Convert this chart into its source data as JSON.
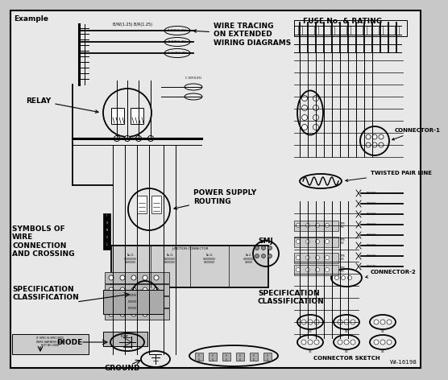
{
  "bg_color": "#c8c8c8",
  "inner_bg": "#e8e8e8",
  "labels": {
    "example": "Example",
    "relay": "RELAY",
    "wire_tracing": "WIRE TRACING\nON EXTENDED\nWIRING DIAGRAMS",
    "fuse": "FUSE No. & RATING",
    "connector1": "CONNECTOR-1",
    "twisted": "TWISTED PAIR LINE",
    "power_supply": "POWER SUPPLY\nROUTING",
    "smj": "SMJ",
    "symbols": "SYMBOLS OF\nWIRE\nCONNECTION\nAND CROSSING",
    "spec_class1": "SPECIFICATION\nCLASSIFICATION",
    "spec_class2": "SPECIFICATION\nCLASSIFICATION",
    "connector2": "CONNECTOR-2",
    "diode": "DIODE",
    "ground": "GROUND",
    "connector_sketch": "CONNECTOR SKETCH",
    "wi": "WI-16198"
  },
  "fs_title": 6.5,
  "fs_label": 6.5,
  "fs_small": 5.0,
  "fs_tiny": 3.5
}
